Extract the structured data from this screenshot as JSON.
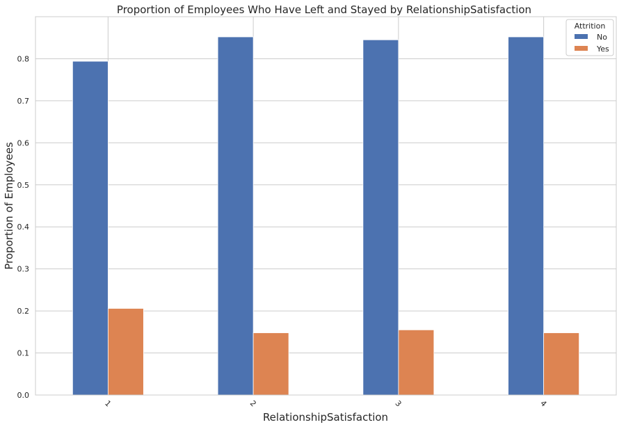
{
  "chart_data": {
    "type": "bar",
    "title": "Proportion of Employees Who Have Left and Stayed by RelationshipSatisfaction",
    "xlabel": "RelationshipSatisfaction",
    "ylabel": "Proportion of Employees",
    "categories": [
      "1",
      "2",
      "3",
      "4"
    ],
    "series": [
      {
        "name": "No",
        "color": "#4c72b0",
        "values": [
          0.794,
          0.852,
          0.845,
          0.852
        ]
      },
      {
        "name": "Yes",
        "color": "#dd8452",
        "values": [
          0.206,
          0.148,
          0.155,
          0.148
        ]
      }
    ],
    "ylim": [
      0,
      0.9
    ],
    "yticks": [
      "0.0",
      "0.1",
      "0.2",
      "0.3",
      "0.4",
      "0.5",
      "0.6",
      "0.7",
      "0.8"
    ],
    "legend": {
      "title": "Attrition",
      "position": "top-right"
    },
    "grid": true
  }
}
